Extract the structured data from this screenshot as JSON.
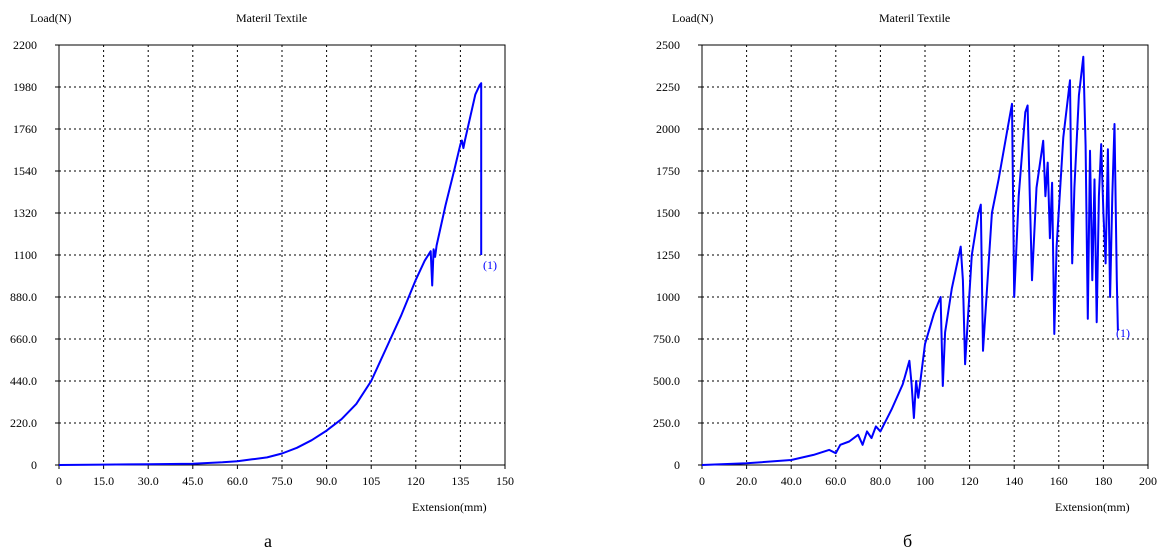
{
  "chart_data": [
    {
      "type": "line",
      "title": "Materil Textile",
      "ylabel": "Load(N)",
      "xlabel": "Extension(mm)",
      "caption": "а",
      "end_label": "(1)",
      "xlim": [
        0,
        150
      ],
      "ylim": [
        0,
        2200
      ],
      "x_ticks": [
        0,
        15,
        30,
        45,
        60,
        75,
        90,
        105,
        120,
        135,
        150
      ],
      "x_tick_labels": [
        "0",
        "15.0",
        "30.0",
        "45.0",
        "60.0",
        "75.0",
        "90.0",
        "105",
        "120",
        "135",
        "150"
      ],
      "y_ticks": [
        0,
        220,
        440,
        660,
        880,
        1100,
        1320,
        1540,
        1760,
        1980,
        2200
      ],
      "y_tick_labels": [
        "0",
        "220.0",
        "440.0",
        "660.0",
        "880.0",
        "1100",
        "1320",
        "1540",
        "1760",
        "1980",
        "2200"
      ],
      "grid": true,
      "series_color": "#0000ff",
      "series": [
        {
          "name": "",
          "x": [
            0,
            15,
            30,
            45,
            55,
            60,
            65,
            70,
            75,
            80,
            85,
            90,
            95,
            100,
            105,
            110,
            115,
            120,
            123,
            125,
            125.5,
            126,
            126.5,
            127,
            130,
            133,
            135,
            135.5,
            136,
            136.5,
            140,
            141.5,
            142,
            142
          ],
          "y": [
            0,
            2,
            4,
            7,
            14,
            20,
            30,
            40,
            60,
            90,
            130,
            180,
            240,
            320,
            440,
            610,
            780,
            970,
            1070,
            1120,
            940,
            1130,
            1090,
            1150,
            1360,
            1550,
            1680,
            1700,
            1660,
            1700,
            1940,
            1990,
            2000,
            1100
          ]
        }
      ]
    },
    {
      "type": "line",
      "title": "Materil Textile",
      "ylabel": "Load(N)",
      "xlabel": "Extension(mm)",
      "caption": "б",
      "end_label": "(1)",
      "xlim": [
        0,
        200
      ],
      "ylim": [
        0,
        2500
      ],
      "x_ticks": [
        0,
        20,
        40,
        60,
        80,
        100,
        120,
        140,
        160,
        180,
        200
      ],
      "x_tick_labels": [
        "0",
        "20.0",
        "40.0",
        "60.0",
        "80.0",
        "100",
        "120",
        "140",
        "160",
        "180",
        "200"
      ],
      "y_ticks": [
        0,
        250,
        500,
        750,
        1000,
        1250,
        1500,
        1750,
        2000,
        2250,
        2500
      ],
      "y_tick_labels": [
        "0",
        "250.0",
        "500.0",
        "750.0",
        "1000",
        "1250",
        "1500",
        "1750",
        "2000",
        "2250",
        "2500"
      ],
      "grid": true,
      "series_color": "#0000ff",
      "series": [
        {
          "name": "",
          "x": [
            0,
            20,
            40,
            50,
            57,
            60,
            62,
            66,
            70,
            72,
            74,
            76,
            78,
            80,
            85,
            90,
            93,
            94,
            95,
            96,
            97,
            100,
            104,
            107,
            108,
            109,
            112,
            116,
            117,
            118,
            121,
            124,
            125,
            126,
            130,
            133,
            137,
            139,
            140,
            142,
            145,
            146,
            147,
            148,
            150,
            153,
            154,
            155,
            156,
            157,
            158,
            159,
            162,
            165,
            166,
            167,
            169,
            171,
            172,
            173,
            174,
            175,
            176,
            177,
            178,
            179,
            180,
            181,
            182,
            183,
            184,
            185,
            186,
            186.5
          ],
          "y": [
            0,
            10,
            30,
            60,
            90,
            70,
            120,
            140,
            180,
            120,
            200,
            160,
            230,
            200,
            330,
            480,
            620,
            480,
            280,
            500,
            400,
            720,
            900,
            1000,
            470,
            790,
            1050,
            1300,
            1100,
            600,
            1250,
            1500,
            1550,
            680,
            1500,
            1700,
            2000,
            2150,
            1000,
            1600,
            2100,
            2140,
            1600,
            1100,
            1650,
            1930,
            1600,
            1800,
            1350,
            1680,
            780,
            1300,
            1950,
            2290,
            1200,
            1650,
            2200,
            2430,
            1900,
            870,
            1870,
            1100,
            1700,
            850,
            1600,
            1910,
            1500,
            1200,
            1880,
            1000,
            1600,
            2030,
            1100,
            800
          ]
        }
      ]
    }
  ]
}
